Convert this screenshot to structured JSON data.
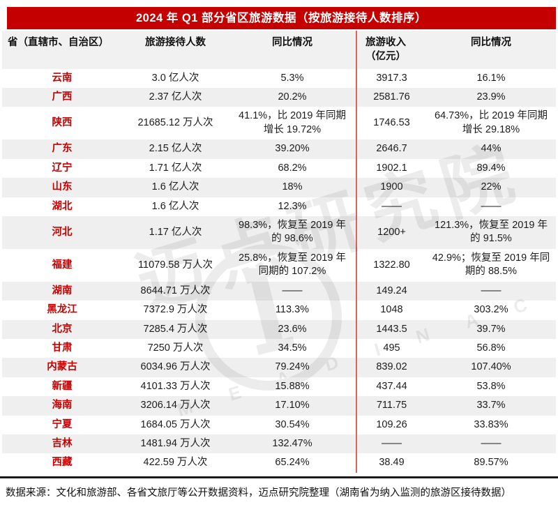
{
  "title": "2024 年 Q1 部分省区旅游数据（按旅游接待人数排序）",
  "columns": {
    "province": "省（直辖市、自治区）",
    "visitors": "旅游接待人数",
    "visitors_yoy": "同比情况",
    "revenue_line1": "旅游收入",
    "revenue_line2": "（亿元）",
    "revenue_yoy": "同比情况"
  },
  "footer": "数据来源：文化和旅游部、各省文旅厅等公开数据资料，迈点研究院整理（湖南省为纳入监测的旅游区接待数据）",
  "watermark": {
    "text": "迈点研究院",
    "letters": "M E A D I N  A C A D E M Y"
  },
  "colors": {
    "banner_red": "#c40000",
    "province_red": "#c80000",
    "divider_red": "#d9655c",
    "header_gray": "#f1f1f1",
    "row_alt_gray": "#efefef",
    "footer_rule_black": "#1a1a1a"
  },
  "chart_data": {
    "type": "table",
    "title": "2024 年 Q1 部分省区旅游数据（按旅游接待人数排序）",
    "columns": [
      "省（直辖市、自治区）",
      "旅游接待人数",
      "同比情况",
      "旅游收入（亿元）",
      "同比情况"
    ],
    "rows": [
      [
        "云南",
        "3.0 亿人次",
        "5.3%",
        "3917.3",
        "16.1%"
      ],
      [
        "广西",
        "2.37 亿人次",
        "20.2%",
        "2581.76",
        "23.9%"
      ],
      [
        "陕西",
        "21685.12 万人次",
        "41.1%，比 2019 年同期增长 19.72%",
        "1746.53",
        "64.73%，比 2019 年同期增长 29.18%"
      ],
      [
        "广东",
        "2.15 亿人次",
        "39.20%",
        "2646.7",
        "44%"
      ],
      [
        "辽宁",
        "1.71 亿人次",
        "68.2%",
        "1902.1",
        "89.4%"
      ],
      [
        "山东",
        "1.6 亿人次",
        "18%",
        "1900",
        "22%"
      ],
      [
        "湖北",
        "1.6 亿人次",
        "12.3%",
        "——",
        "——"
      ],
      [
        "河北",
        "1.17 亿人次",
        "98.3%，恢复至 2019 年的 98.6%",
        "1200+",
        "121.3%，恢复至 2019 年的 91.5%"
      ],
      [
        "福建",
        "11079.58 万人次",
        "25.8%，恢复至 2019 年同期的 107.2%",
        "1322.80",
        "42.9%；恢复至 2019 年同期的 88.5%"
      ],
      [
        "湖南",
        "8644.71 万人次",
        "——",
        "149.24",
        "——"
      ],
      [
        "黑龙江",
        "7372.9 万人次",
        "113.3%",
        "1048",
        "303.2%"
      ],
      [
        "北京",
        "7285.4 万人次",
        "23.6%",
        "1443.5",
        "39.7%"
      ],
      [
        "甘肃",
        "7250 万人次",
        "34.5%",
        "495",
        "56.8%"
      ],
      [
        "内蒙古",
        "6034.96 万人次",
        "79.24%",
        "839.02",
        "107.40%"
      ],
      [
        "新疆",
        "4101.33 万人次",
        "15.88%",
        "437.44",
        "53.8%"
      ],
      [
        "海南",
        "3206.14 万人次",
        "17.10%",
        "711.75",
        "33.7%"
      ],
      [
        "宁夏",
        "1684.05 万人次",
        "30.54%",
        "109.26",
        "33.83%"
      ],
      [
        "吉林",
        "1481.94 万人次",
        "132.47%",
        "——",
        "——"
      ],
      [
        "西藏",
        "422.59 万人次",
        "65.24%",
        "38.49",
        "89.57%"
      ]
    ]
  }
}
